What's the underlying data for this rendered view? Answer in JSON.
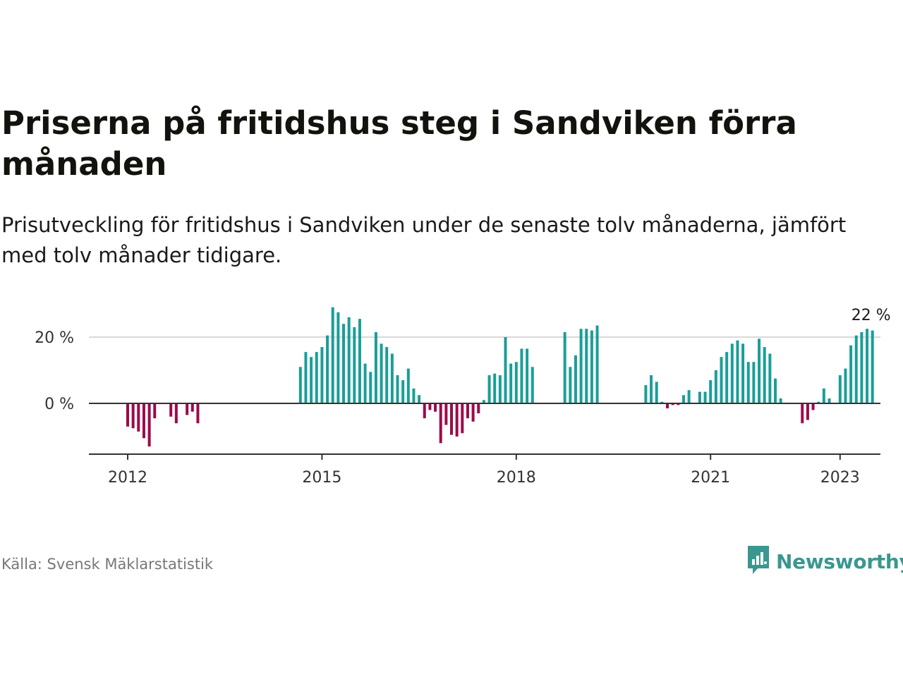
{
  "header": {
    "title": "Priserna på fritidshus steg i Sandviken förra månaden",
    "subtitle": "Prisutveckling för fritidshus i Sandviken under de senaste tolv månaderna, jämfört med tolv månader tidigare."
  },
  "footer": {
    "source": "Källa: Svensk Mäklarstatistik",
    "brand": "Newsworthy"
  },
  "colors": {
    "positive": "#1a9e98",
    "negative": "#9b0b4a",
    "brand": "#3a978f"
  },
  "chart_data": {
    "type": "bar",
    "title": "Priserna på fritidshus steg i Sandviken förra månaden",
    "xlabel": "",
    "ylabel": "",
    "ylim": [
      -15,
      30
    ],
    "yticks": [
      {
        "value": 0,
        "label": "0 %"
      },
      {
        "value": 20,
        "label": "20 %"
      }
    ],
    "xticks": [
      {
        "year": 2012,
        "label": "2012"
      },
      {
        "year": 2015,
        "label": "2015"
      },
      {
        "year": 2018,
        "label": "2018"
      },
      {
        "year": 2021,
        "label": "2021"
      },
      {
        "year": 2023,
        "label": "2023"
      }
    ],
    "annotation": {
      "label": "22 %",
      "value": 22
    },
    "series": [
      {
        "values": [
          [
            "2012-01",
            -7
          ],
          [
            "2012-02",
            -7.5
          ],
          [
            "2012-03",
            -8.5
          ],
          [
            "2012-04",
            -10.5
          ],
          [
            "2012-05",
            -13
          ],
          [
            "2012-06",
            -4.5
          ],
          [
            "2012-09",
            -4
          ],
          [
            "2012-10",
            -6
          ],
          [
            "2012-12",
            -3.5
          ],
          [
            "2013-01",
            -2.5
          ],
          [
            "2013-02",
            -6
          ],
          [
            "2014-09",
            11
          ],
          [
            "2014-10",
            15.5
          ],
          [
            "2014-11",
            14
          ],
          [
            "2014-12",
            15.5
          ],
          [
            "2015-01",
            17
          ],
          [
            "2015-02",
            20.5
          ],
          [
            "2015-03",
            29
          ],
          [
            "2015-04",
            27.5
          ],
          [
            "2015-05",
            24
          ],
          [
            "2015-06",
            26
          ],
          [
            "2015-07",
            23
          ],
          [
            "2015-08",
            25.5
          ],
          [
            "2015-09",
            12
          ],
          [
            "2015-10",
            9.5
          ],
          [
            "2015-11",
            21.5
          ],
          [
            "2015-12",
            18
          ],
          [
            "2016-01",
            17
          ],
          [
            "2016-02",
            15
          ],
          [
            "2016-03",
            8.5
          ],
          [
            "2016-04",
            7
          ],
          [
            "2016-05",
            10.5
          ],
          [
            "2016-06",
            4.5
          ],
          [
            "2016-07",
            2.5
          ],
          [
            "2016-08",
            -4.5
          ],
          [
            "2016-09",
            -2
          ],
          [
            "2016-10",
            -2.5
          ],
          [
            "2016-11",
            -12
          ],
          [
            "2016-12",
            -6.5
          ],
          [
            "2017-01",
            -9.5
          ],
          [
            "2017-02",
            -10
          ],
          [
            "2017-03",
            -9
          ],
          [
            "2017-04",
            -4.5
          ],
          [
            "2017-05",
            -5.5
          ],
          [
            "2017-06",
            -3
          ],
          [
            "2017-07",
            1
          ],
          [
            "2017-08",
            8.5
          ],
          [
            "2017-09",
            9
          ],
          [
            "2017-10",
            8.5
          ],
          [
            "2017-11",
            20
          ],
          [
            "2017-12",
            12
          ],
          [
            "2018-01",
            12.5
          ],
          [
            "2018-02",
            16.5
          ],
          [
            "2018-03",
            16.5
          ],
          [
            "2018-04",
            11
          ],
          [
            "2018-10",
            21.5
          ],
          [
            "2018-11",
            11
          ],
          [
            "2018-12",
            14.5
          ],
          [
            "2019-01",
            22.5
          ],
          [
            "2019-02",
            22.5
          ],
          [
            "2019-03",
            22
          ],
          [
            "2019-04",
            23.5
          ],
          [
            "2020-01",
            5.5
          ],
          [
            "2020-02",
            8.5
          ],
          [
            "2020-03",
            6.5
          ],
          [
            "2020-04",
            0.5
          ],
          [
            "2020-05",
            -1.5
          ],
          [
            "2020-06",
            -0.5
          ],
          [
            "2020-07",
            -0.5
          ],
          [
            "2020-08",
            2.5
          ],
          [
            "2020-09",
            4
          ],
          [
            "2020-10",
            0
          ],
          [
            "2020-11",
            3.5
          ],
          [
            "2020-12",
            3.5
          ],
          [
            "2021-01",
            7
          ],
          [
            "2021-02",
            10
          ],
          [
            "2021-03",
            14
          ],
          [
            "2021-04",
            15.5
          ],
          [
            "2021-05",
            18
          ],
          [
            "2021-06",
            19
          ],
          [
            "2021-07",
            18
          ],
          [
            "2021-08",
            12.5
          ],
          [
            "2021-09",
            12.5
          ],
          [
            "2021-10",
            19.5
          ],
          [
            "2021-11",
            17
          ],
          [
            "2021-12",
            15
          ],
          [
            "2022-01",
            7.5
          ],
          [
            "2022-02",
            1.5
          ],
          [
            "2022-06",
            -6
          ],
          [
            "2022-07",
            -5
          ],
          [
            "2022-08",
            -2
          ],
          [
            "2022-09",
            0.5
          ],
          [
            "2022-10",
            4.5
          ],
          [
            "2022-11",
            1.5
          ],
          [
            "2023-01",
            8.5
          ],
          [
            "2023-02",
            10.5
          ],
          [
            "2023-03",
            17.5
          ],
          [
            "2023-04",
            20.5
          ],
          [
            "2023-05",
            21.5
          ],
          [
            "2023-06",
            22.5
          ],
          [
            "2023-07",
            22
          ]
        ]
      }
    ]
  }
}
